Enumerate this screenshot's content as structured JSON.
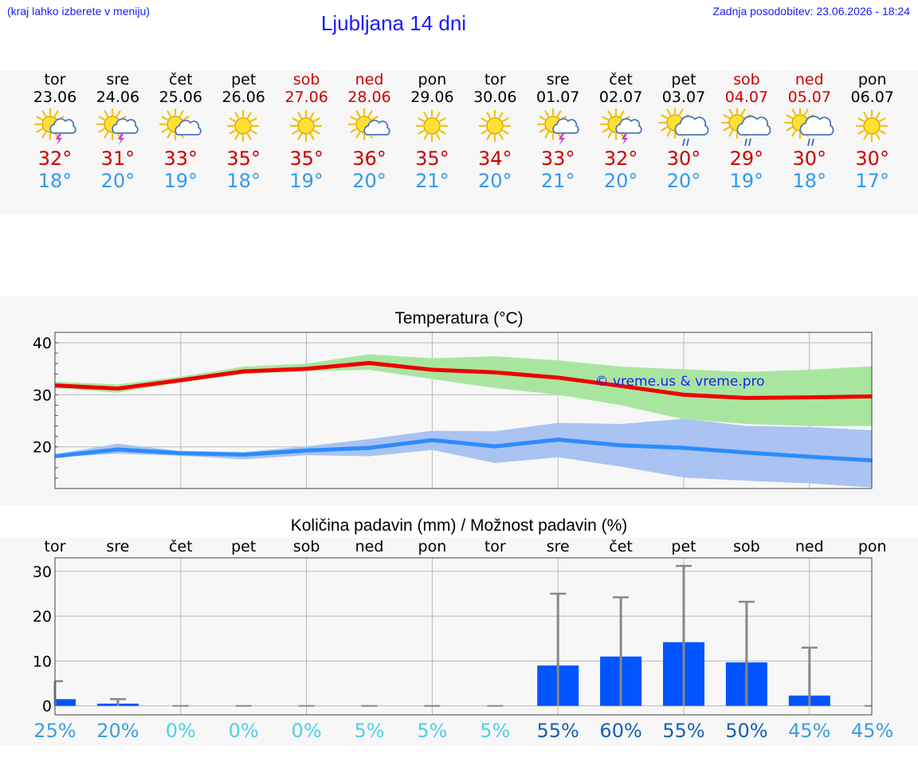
{
  "header": {
    "hint": "(kraj lahko izberete v meniju)",
    "title": "Ljubljana 14 dni",
    "updated": "Zadnja posodobitev: 23.06.2026 - 18:24"
  },
  "colors": {
    "title_blue": "#1a1aff",
    "weekend_red": "#cc0000",
    "max_temp": "#ee0000",
    "min_temp": "#2b8cff",
    "max_band": "#a8e6a0",
    "min_band": "#a9c3f2",
    "bar": "#0055ff",
    "whisker": "#888888"
  },
  "days": [
    {
      "name": "tor",
      "date": "23.06",
      "icon": "sun-storm-icon",
      "max": "32°",
      "min": "18°",
      "weekend": false
    },
    {
      "name": "sre",
      "date": "24.06",
      "icon": "sun-storm-icon",
      "max": "31°",
      "min": "20°",
      "weekend": false
    },
    {
      "name": "čet",
      "date": "25.06",
      "icon": "sun-cloud-icon",
      "max": "33°",
      "min": "19°",
      "weekend": false
    },
    {
      "name": "pet",
      "date": "26.06",
      "icon": "sun-icon",
      "max": "35°",
      "min": "18°",
      "weekend": false
    },
    {
      "name": "sob",
      "date": "27.06",
      "icon": "sun-icon",
      "max": "35°",
      "min": "19°",
      "weekend": true
    },
    {
      "name": "ned",
      "date": "28.06",
      "icon": "sun-cloud-icon",
      "max": "36°",
      "min": "20°",
      "weekend": true
    },
    {
      "name": "pon",
      "date": "29.06",
      "icon": "sun-icon",
      "max": "35°",
      "min": "21°",
      "weekend": false
    },
    {
      "name": "tor",
      "date": "30.06",
      "icon": "sun-icon",
      "max": "34°",
      "min": "20°",
      "weekend": false
    },
    {
      "name": "sre",
      "date": "01.07",
      "icon": "sun-storm-icon",
      "max": "33°",
      "min": "21°",
      "weekend": false
    },
    {
      "name": "čet",
      "date": "02.07",
      "icon": "sun-storm-icon",
      "max": "32°",
      "min": "20°",
      "weekend": false
    },
    {
      "name": "pet",
      "date": "03.07",
      "icon": "sun-rain-icon",
      "max": "30°",
      "min": "20°",
      "weekend": false
    },
    {
      "name": "sob",
      "date": "04.07",
      "icon": "sun-rain-icon",
      "max": "29°",
      "min": "19°",
      "weekend": true
    },
    {
      "name": "ned",
      "date": "05.07",
      "icon": "sun-rain-icon",
      "max": "30°",
      "min": "18°",
      "weekend": true
    },
    {
      "name": "pon",
      "date": "06.07",
      "icon": "sun-icon",
      "max": "30°",
      "min": "17°",
      "weekend": false
    }
  ],
  "chart_data": [
    {
      "type": "line",
      "title": "Temperatura (°C)",
      "watermark": "© vreme.us & vreme.pro",
      "x": [
        0,
        1,
        2,
        3,
        4,
        5,
        6,
        7,
        8,
        9,
        10,
        11,
        12,
        13
      ],
      "ylim": [
        12,
        42
      ],
      "yticks": [
        20,
        30,
        40
      ],
      "grid": true,
      "series": [
        {
          "values": [
            31.8,
            31.2,
            32.8,
            34.5,
            35.0,
            36.1,
            34.8,
            34.3,
            33.3,
            31.7,
            30.0,
            29.4,
            29.5,
            29.7
          ],
          "band_high": [
            32.5,
            32.0,
            33.5,
            35.4,
            36.0,
            37.8,
            37.0,
            37.4,
            36.6,
            35.4,
            34.9,
            34.4,
            34.8,
            35.5
          ],
          "band_low": [
            31.3,
            30.4,
            32.4,
            34.0,
            34.5,
            34.8,
            33.0,
            31.3,
            30.0,
            28.0,
            25.3,
            24.4,
            24.0,
            24.0
          ]
        },
        {
          "values": [
            18.2,
            19.5,
            18.8,
            18.5,
            19.3,
            19.8,
            21.3,
            20.1,
            21.4,
            20.3,
            19.8,
            18.9,
            18.1,
            17.4
          ],
          "band_high": [
            18.6,
            20.6,
            19.2,
            19.0,
            20.1,
            21.5,
            23.1,
            23.0,
            24.6,
            24.4,
            25.4,
            24.0,
            23.8,
            23.2
          ],
          "band_low": [
            18.0,
            18.7,
            18.3,
            17.6,
            18.4,
            18.2,
            19.4,
            16.9,
            18.0,
            16.2,
            14.1,
            13.5,
            13.0,
            12.2
          ]
        }
      ]
    },
    {
      "type": "bar",
      "title": "Količina padavin (mm) / Možnost padavin (%)",
      "categories": [
        "tor",
        "sre",
        "čet",
        "pet",
        "sob",
        "ned",
        "pon",
        "tor",
        "sre",
        "čet",
        "pet",
        "sob",
        "ned",
        "pon"
      ],
      "values": [
        1.5,
        0.5,
        0,
        0,
        0,
        0,
        0,
        0,
        9,
        11,
        14.2,
        9.7,
        2.3,
        0
      ],
      "whisker_high": [
        5.5,
        1.5,
        0,
        0,
        0,
        0,
        0,
        0,
        25,
        24.2,
        31.2,
        23.2,
        13,
        0
      ],
      "chance": [
        "25%",
        "20%",
        "0%",
        "0%",
        "0%",
        "5%",
        "5%",
        "5%",
        "55%",
        "60%",
        "55%",
        "50%",
        "45%",
        "45%"
      ],
      "chance_colors": [
        "#3aa0e0",
        "#3aa0e0",
        "#4dd0e6",
        "#4dd0e6",
        "#4dd0e6",
        "#4dd0e6",
        "#4dd0e6",
        "#4dd0e6",
        "#1660b0",
        "#1660b0",
        "#1660b0",
        "#1660b0",
        "#3aa0e0",
        "#3aa0e0"
      ],
      "ylim": [
        -2,
        33
      ],
      "yticks": [
        0,
        10,
        20,
        30
      ],
      "grid": true
    }
  ]
}
